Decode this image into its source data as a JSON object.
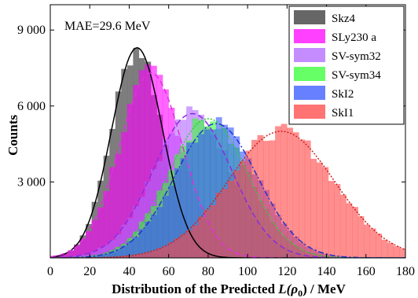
{
  "chart_data": {
    "type": "bar",
    "xlabel_prefix": "Distribution of the Predicted ",
    "xlabel_symbol": "L(ρ",
    "xlabel_sub": "0",
    "xlabel_suffix": ")  / MeV",
    "ylabel": "Counts",
    "annotation": "MAE=29.6 MeV",
    "xlim": [
      0,
      180
    ],
    "ylim": [
      0,
      10000
    ],
    "xticks": [
      0,
      20,
      40,
      60,
      80,
      100,
      120,
      140,
      160,
      180
    ],
    "yticks": [
      3000,
      6000,
      9000
    ],
    "ytick_labels": [
      "3 000",
      "6 000",
      "9 000"
    ],
    "bin_width": 3,
    "legend_position": "top-right",
    "series": [
      {
        "name": "Skz4",
        "color": "#666666",
        "opacity": 0.85,
        "mean": 44,
        "sd": 13,
        "peak": 8300,
        "fit_style": "solid",
        "fit_color": "#000000"
      },
      {
        "name": "SLy230 a",
        "color": "#ff00ff",
        "opacity": 0.6,
        "mean": 51,
        "sd": 16,
        "peak": 7300,
        "fit_style": "dashed",
        "fit_color": "#e030e0"
      },
      {
        "name": "SV-sym32",
        "color": "#b266ff",
        "opacity": 0.6,
        "mean": 72,
        "sd": 20,
        "peak": 5700,
        "fit_style": "dashed",
        "fit_color": "#8a2be2"
      },
      {
        "name": "SV-sym34",
        "color": "#33ff33",
        "opacity": 0.6,
        "mean": 80,
        "sd": 20,
        "peak": 5500,
        "fit_style": "dotted",
        "fit_color": "#33cc33"
      },
      {
        "name": "SkI2",
        "color": "#3355ff",
        "opacity": 0.6,
        "mean": 84,
        "sd": 21,
        "peak": 5300,
        "fit_style": "dashdot",
        "fit_color": "#2233cc"
      },
      {
        "name": "SkI1",
        "color": "#ff4444",
        "opacity": 0.6,
        "mean": 117,
        "sd": 27,
        "peak": 5000,
        "fit_style": "dotted",
        "fit_color": "#cc2222"
      }
    ]
  }
}
